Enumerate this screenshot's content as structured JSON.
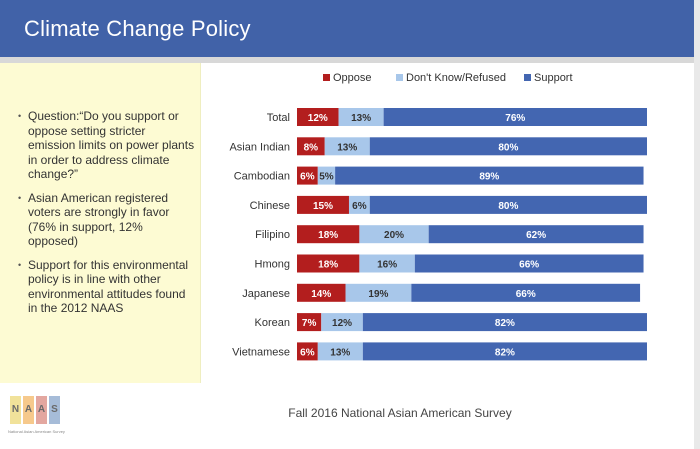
{
  "header": {
    "title": "Climate Change Policy"
  },
  "sidebar": {
    "bullets": [
      "Question:“Do you support or oppose setting stricter emission limits on power plants in order to address climate change?”",
      "Asian American registered voters are strongly in favor (76% in support, 12% opposed)",
      "Support for this environmental policy is in line with other environmental attitudes found in the 2012 NAAS"
    ],
    "bullet_glyph": "•"
  },
  "footer": {
    "source": "Fall 2016 National Asian American Survey"
  },
  "logo": {
    "letters": [
      "N",
      "A",
      "A",
      "S"
    ],
    "colors": [
      "#f1e29a",
      "#f6c98c",
      "#e3a7a0",
      "#a6bcd8"
    ],
    "subtitle": "National Asian American Survey"
  },
  "colors": {
    "oppose": "#b31e1e",
    "dontknow": "#a8c7ea",
    "support": "#4366b1",
    "header": "#4162a8",
    "sidebar": "#fdfbd3"
  },
  "chart_data": {
    "type": "bar",
    "orientation": "horizontal",
    "stacked": true,
    "categories": [
      "Total",
      "Asian Indian",
      "Cambodian",
      "Chinese",
      "Filipino",
      "Hmong",
      "Japanese",
      "Korean",
      "Vietnamese"
    ],
    "series": [
      {
        "name": "Oppose",
        "key": "oppose",
        "values": [
          12,
          8,
          6,
          15,
          18,
          18,
          14,
          7,
          6
        ],
        "labels": [
          "12%",
          "8%",
          "6%",
          "15%",
          "18%",
          "18%",
          "14%",
          "7%",
          "6%"
        ]
      },
      {
        "name": "Don't Know/Refused",
        "key": "dontknow",
        "values": [
          13,
          13,
          5,
          6,
          20,
          16,
          19,
          12,
          13
        ],
        "labels": [
          "13%",
          "13%",
          "5%",
          "6%",
          "20%",
          "16%",
          "19%",
          "12%",
          "13%"
        ]
      },
      {
        "name": "Support",
        "key": "support",
        "values": [
          76,
          80,
          89,
          80,
          62,
          66,
          66,
          82,
          82
        ],
        "labels": [
          "76%",
          "80%",
          "89%",
          "80%",
          "62%",
          "66%",
          "66%",
          "82%",
          "82%"
        ]
      }
    ],
    "xlim": [
      0,
      101
    ],
    "legend_position": "top",
    "grid": false
  }
}
